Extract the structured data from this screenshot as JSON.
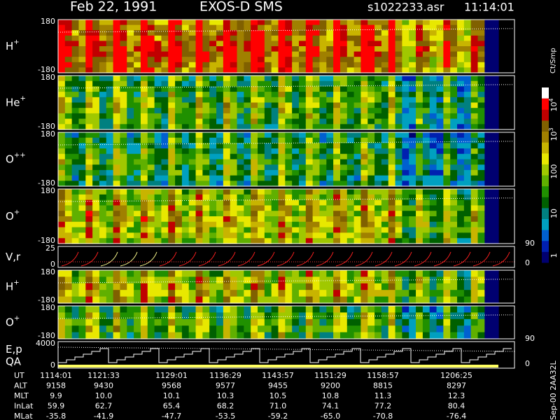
{
  "header": {
    "date": "Feb 22, 1991",
    "instrument": "EXOS-D SMS",
    "file": "s1022233.asr",
    "time": "11:14:01"
  },
  "panels": [
    {
      "label": "H",
      "charge": "+",
      "ticks": [
        "180",
        "-180"
      ]
    },
    {
      "label": "He",
      "charge": "+",
      "ticks": [
        "180",
        "-180"
      ]
    },
    {
      "label": "O",
      "charge": "++",
      "ticks": [
        "180",
        "-180"
      ]
    },
    {
      "label": "O",
      "charge": "+",
      "ticks": [
        "180",
        "-180"
      ]
    },
    {
      "label": "V,r",
      "ticks": [
        "25",
        "0"
      ],
      "right_ticks": [
        "90",
        "0"
      ]
    },
    {
      "label": "H",
      "charge": "+",
      "ticks": [
        "180",
        "-180"
      ]
    },
    {
      "label": "O",
      "charge": "+",
      "ticks": [
        "180",
        "-180"
      ]
    },
    {
      "label": "E,p",
      "label2": "QA",
      "ticks": [
        "4000",
        "0"
      ],
      "right_ticks": [
        "90",
        "0"
      ]
    }
  ],
  "colorbar": {
    "unit": "Ct/Smp",
    "labels": [
      {
        "base": "10",
        "exp": "4"
      },
      {
        "base": "10",
        "exp": "3"
      },
      {
        "base": "100"
      },
      {
        "base": "10"
      },
      {
        "base": "1"
      }
    ]
  },
  "table": {
    "rows": [
      {
        "label": "UT",
        "values": [
          "1114:01",
          "1121:33",
          "1129:01",
          "1136:29",
          "1143:57",
          "1151:29",
          "1158:57",
          "1206:25"
        ]
      },
      {
        "label": "ALT",
        "values": [
          "9158",
          "9430",
          "9568",
          "9577",
          "9455",
          "9200",
          "8815",
          "8297"
        ]
      },
      {
        "label": "MLT",
        "values": [
          "9.9",
          "10.0",
          "10.1",
          "10.3",
          "10.5",
          "10.8",
          "11.3",
          "12.3"
        ]
      },
      {
        "label": "InLat",
        "values": [
          "59.9",
          "62.7",
          "65.4",
          "68.2",
          "71.0",
          "74.1",
          "77.2",
          "80.4"
        ]
      },
      {
        "label": "MLat",
        "values": [
          "-35.8",
          "-41.9",
          "-47.7",
          "-53.5",
          "-59.2",
          "-65.0",
          "-70.8",
          "-76.4"
        ]
      }
    ]
  },
  "footer": "Sep-00 2AA32L"
}
